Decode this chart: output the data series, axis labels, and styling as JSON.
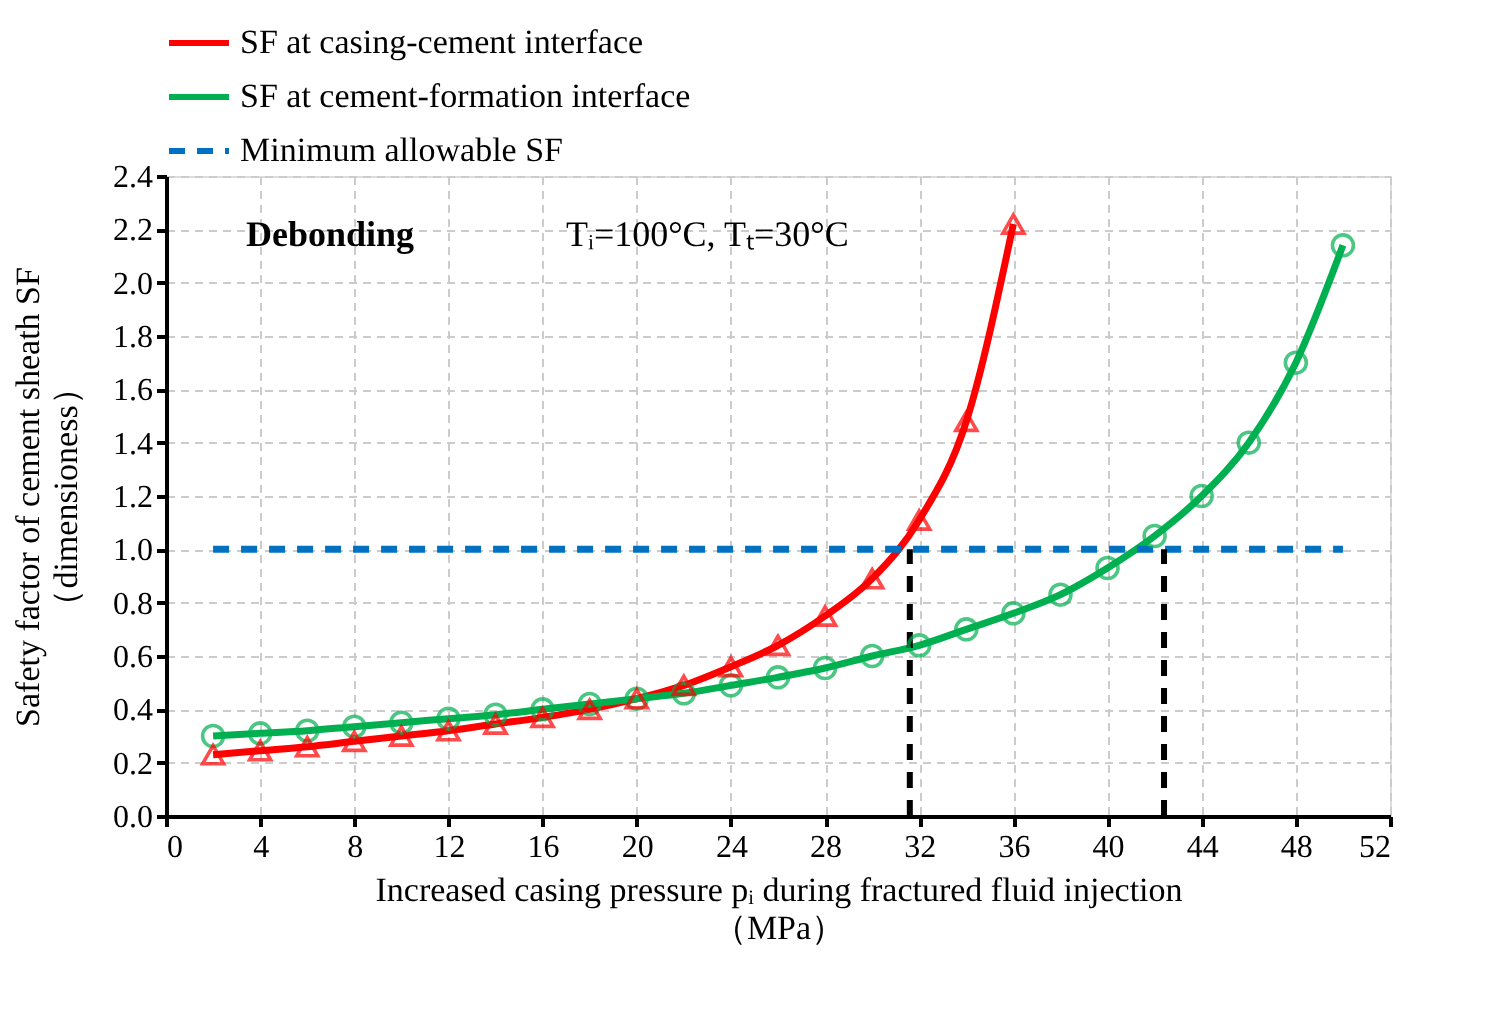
{
  "chart_data": {
    "type": "line",
    "xlabel": "Increased casing pressure pᵢ during fractured fluid injection\n（MPa）",
    "ylabel": "Safety factor of cement sheath SF\n（dimensioness）",
    "annotations": [
      "Debonding",
      "Tᵢ=100°C,  Tₜ=30°C"
    ],
    "series": [
      {
        "name": "SF at casing-cement interface",
        "color": "#ff0000",
        "marker": "triangle",
        "line_style": "solid",
        "x": [
          2,
          4,
          6,
          8,
          10,
          12,
          14,
          16,
          18,
          20,
          22,
          24,
          26,
          28,
          30,
          32,
          34,
          36
        ],
        "values": [
          0.23,
          0.245,
          0.26,
          0.28,
          0.3,
          0.32,
          0.345,
          0.37,
          0.4,
          0.44,
          0.49,
          0.56,
          0.64,
          0.75,
          0.89,
          1.11,
          1.48,
          2.22
        ]
      },
      {
        "name": "SF at cement-formation interface",
        "color": "#00b050",
        "marker": "circle",
        "line_style": "solid",
        "x": [
          2,
          4,
          6,
          8,
          10,
          12,
          14,
          16,
          18,
          20,
          22,
          24,
          26,
          28,
          30,
          32,
          34,
          36,
          38,
          40,
          42,
          44,
          46,
          48,
          50
        ],
        "values": [
          0.3,
          0.31,
          0.32,
          0.335,
          0.35,
          0.365,
          0.38,
          0.4,
          0.42,
          0.44,
          0.46,
          0.49,
          0.52,
          0.555,
          0.6,
          0.64,
          0.7,
          0.76,
          0.83,
          0.93,
          1.05,
          1.2,
          1.4,
          1.7,
          2.14
        ]
      },
      {
        "name": "Minimum allowable SF",
        "color": "#0070c0",
        "marker": "none",
        "line_style": "dashed",
        "x": [
          2,
          50
        ],
        "values": [
          1,
          1
        ]
      },
      {
        "color": "#000000",
        "marker": "none",
        "line_style": "dashed",
        "x": [
          31.6,
          31.6
        ],
        "values": [
          0,
          1
        ]
      },
      {
        "color": "#000000",
        "marker": "none",
        "line_style": "dashed",
        "x": [
          42.4,
          42.4
        ],
        "values": [
          0,
          1
        ]
      }
    ],
    "xlim": [
      0,
      52
    ],
    "xticks": [
      0,
      4,
      8,
      12,
      16,
      20,
      24,
      28,
      32,
      36,
      40,
      44,
      48,
      52
    ],
    "ylim": [
      0,
      2.4
    ],
    "yticks": [
      {
        "value": 0,
        "label": "0.0"
      },
      0.2,
      0.4,
      0.6,
      0.8,
      {
        "value": 1,
        "label": "1.0"
      },
      1.2,
      1.4,
      1.6,
      1.8,
      {
        "value": 2,
        "label": "2.0"
      },
      2.2,
      2.4
    ],
    "grid": true,
    "legend": "top"
  }
}
